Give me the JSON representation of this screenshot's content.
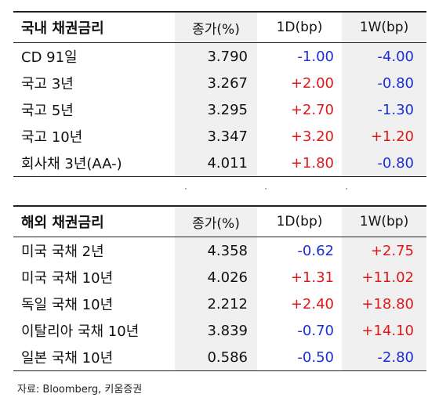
{
  "domestic": {
    "title": "국내 채권금리",
    "columns": [
      "종가(%)",
      "1D(bp)",
      "1W(bp)"
    ],
    "rows": [
      {
        "name": "CD 91일",
        "close": "3.790",
        "d1": "-1.00",
        "w1": "-4.00"
      },
      {
        "name": "국고 3년",
        "close": "3.267",
        "d1": "+2.00",
        "w1": "-0.80"
      },
      {
        "name": "국고 5년",
        "close": "3.295",
        "d1": "+2.70",
        "w1": "-1.30"
      },
      {
        "name": "국고 10년",
        "close": "3.347",
        "d1": "+3.20",
        "w1": "+1.20"
      },
      {
        "name": "회사채 3년(AA-)",
        "close": "4.011",
        "d1": "+1.80",
        "w1": "-0.80"
      }
    ]
  },
  "overseas": {
    "title": "해외 채권금리",
    "columns": [
      "종가(%)",
      "1D(bp)",
      "1W(bp)"
    ],
    "rows": [
      {
        "name": "미국 국채 2년",
        "close": "4.358",
        "d1": "-0.62",
        "w1": "+2.75"
      },
      {
        "name": "미국 국채 10년",
        "close": "4.026",
        "d1": "+1.31",
        "w1": "+11.02"
      },
      {
        "name": "독일 국채 10년",
        "close": "2.212",
        "d1": "+2.40",
        "w1": "+18.80"
      },
      {
        "name": "이탈리아 국채 10년",
        "close": "3.839",
        "d1": "-0.70",
        "w1": "+14.10"
      },
      {
        "name": "일본 국채 10년",
        "close": "0.586",
        "d1": "-0.50",
        "w1": "-2.80"
      }
    ]
  },
  "colors": {
    "positive": "#e01818",
    "negative": "#1a2fd6"
  },
  "source": "자료: Bloomberg, 키움증권"
}
